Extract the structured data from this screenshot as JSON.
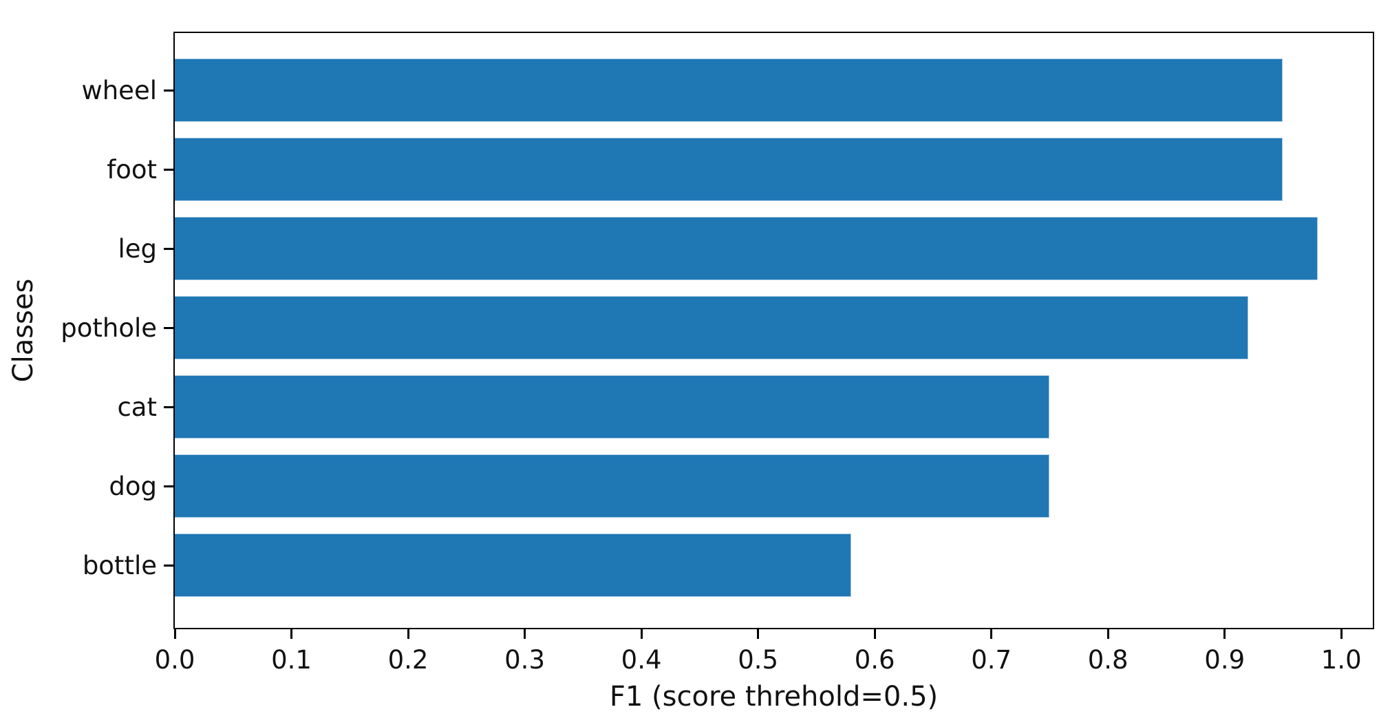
{
  "chart_data": {
    "type": "bar",
    "orientation": "horizontal",
    "title": "",
    "xlabel": "F1 (score threhold=0.5)",
    "ylabel": "Classes",
    "categories": [
      "wheel",
      "foot",
      "leg",
      "pothole",
      "cat",
      "dog",
      "bottle"
    ],
    "values": [
      0.95,
      0.95,
      0.98,
      0.92,
      0.75,
      0.75,
      0.58
    ],
    "x_ticks": [
      {
        "value": 0.0,
        "label": "0.0"
      },
      {
        "value": 0.1,
        "label": "0.1"
      },
      {
        "value": 0.2,
        "label": "0.2"
      },
      {
        "value": 0.3,
        "label": "0.3"
      },
      {
        "value": 0.4,
        "label": "0.4"
      },
      {
        "value": 0.5,
        "label": "0.5"
      },
      {
        "value": 0.6,
        "label": "0.6"
      },
      {
        "value": 0.7,
        "label": "0.7"
      },
      {
        "value": 0.8,
        "label": "0.8"
      },
      {
        "value": 0.9,
        "label": "0.9"
      },
      {
        "value": 1.0,
        "label": "1.0"
      }
    ],
    "xlim": [
      0,
      1.027
    ],
    "grid": false,
    "legend": null,
    "bar_color": "#1f77b4",
    "spine_color": "#000000",
    "text_color": "#111111",
    "background_color": "#ffffff"
  }
}
